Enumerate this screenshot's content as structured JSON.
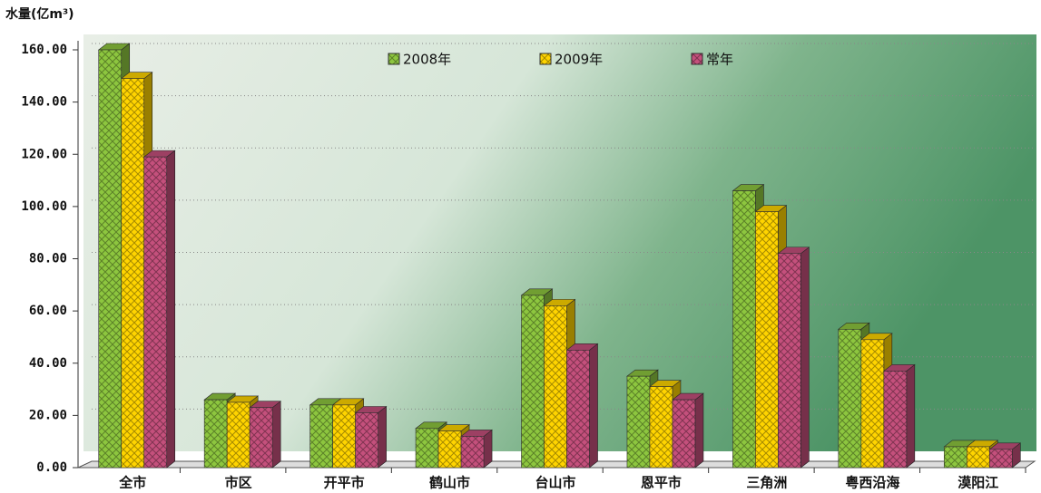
{
  "chart_data": {
    "type": "bar",
    "y_label": "水量(亿m³)",
    "categories": [
      "全市",
      "市区",
      "开平市",
      "鹤山市",
      "台山市",
      "恩平市",
      "三角洲",
      "粤西沿海",
      "漠阳江"
    ],
    "series": [
      {
        "name": "2008年",
        "color": "#8dc63f",
        "values": [
          160,
          26,
          24,
          15,
          66,
          35,
          106,
          53,
          8
        ]
      },
      {
        "name": "2009年",
        "color": "#ffd400",
        "values": [
          149,
          25,
          24,
          14,
          62,
          31,
          98,
          49,
          8
        ]
      },
      {
        "name": "常年",
        "color": "#c4507c",
        "values": [
          119,
          23,
          21,
          12,
          45,
          26,
          82,
          37,
          7
        ]
      }
    ],
    "ylim": [
      0,
      160
    ],
    "yticks": [
      {
        "value": 0,
        "label": "0.00"
      },
      {
        "value": 20,
        "label": "20.00"
      },
      {
        "value": 40,
        "label": "40.00"
      },
      {
        "value": 60,
        "label": "60.00"
      },
      {
        "value": 80,
        "label": "80.00"
      },
      {
        "value": 100,
        "label": "100.00"
      },
      {
        "value": 120,
        "label": "120.00"
      },
      {
        "value": 140,
        "label": "140.00"
      },
      {
        "value": 160,
        "label": "160.00"
      }
    ],
    "grid": true,
    "legend": "top"
  }
}
